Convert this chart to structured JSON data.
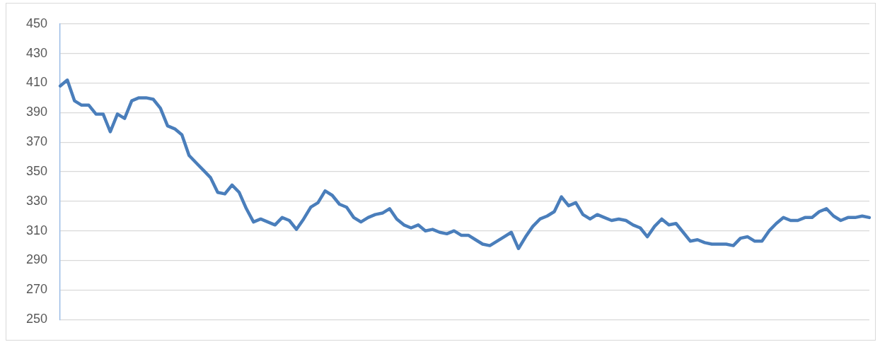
{
  "chart_data": {
    "type": "line",
    "categories": [
      null,
      null,
      null,
      null,
      null,
      null,
      null,
      null,
      null,
      null,
      null,
      null,
      null,
      null,
      null,
      null,
      null,
      null,
      null,
      null,
      null,
      null,
      null,
      null,
      null,
      null,
      null,
      null,
      null,
      null,
      null,
      null,
      null,
      null,
      null,
      null,
      null,
      null,
      null,
      null,
      null,
      null,
      null,
      null,
      null,
      null,
      null,
      null,
      null,
      null,
      null,
      null,
      null,
      null,
      null,
      null,
      null,
      null,
      null,
      null,
      null,
      null,
      null,
      null,
      null,
      null,
      null,
      null,
      null,
      null,
      null,
      null,
      null,
      null,
      null,
      null,
      null,
      null,
      null,
      null,
      null,
      null,
      null,
      null,
      null,
      null,
      null,
      null,
      null,
      null,
      null,
      null,
      null,
      null,
      null,
      null,
      null,
      null,
      null,
      null,
      null,
      null,
      null,
      null,
      null,
      null,
      null,
      null,
      null,
      null,
      null,
      null,
      null,
      null
    ],
    "series": [
      {
        "color": "#4a7ebb",
        "values": [
          408,
          412,
          398,
          395,
          395,
          389,
          389,
          377,
          389,
          386,
          398,
          400,
          400,
          399,
          393,
          381,
          379,
          375,
          361,
          356,
          351,
          346,
          336,
          335,
          341,
          336,
          325,
          316,
          318,
          316,
          314,
          319,
          317,
          311,
          318,
          326,
          329,
          337,
          334,
          328,
          326,
          319,
          316,
          319,
          321,
          322,
          325,
          318,
          314,
          312,
          314,
          310,
          311,
          309,
          308,
          310,
          307,
          307,
          304,
          301,
          300,
          303,
          306,
          309,
          298,
          306,
          313,
          318,
          320,
          323,
          333,
          327,
          329,
          321,
          318,
          321,
          319,
          317,
          318,
          317,
          314,
          312,
          306,
          313,
          318,
          314,
          315,
          309,
          303,
          304,
          302,
          301,
          301,
          301,
          300,
          305,
          306,
          303,
          303,
          310,
          315,
          319,
          317,
          317,
          319,
          319,
          323,
          325,
          320,
          317,
          319,
          319,
          320,
          319
        ]
      }
    ],
    "ylim": [
      250,
      450
    ],
    "yticks": [
      250,
      270,
      290,
      310,
      330,
      350,
      370,
      390,
      410,
      430,
      450
    ],
    "grid": "y",
    "legend": false,
    "marker": "none",
    "line_style": "solid"
  }
}
